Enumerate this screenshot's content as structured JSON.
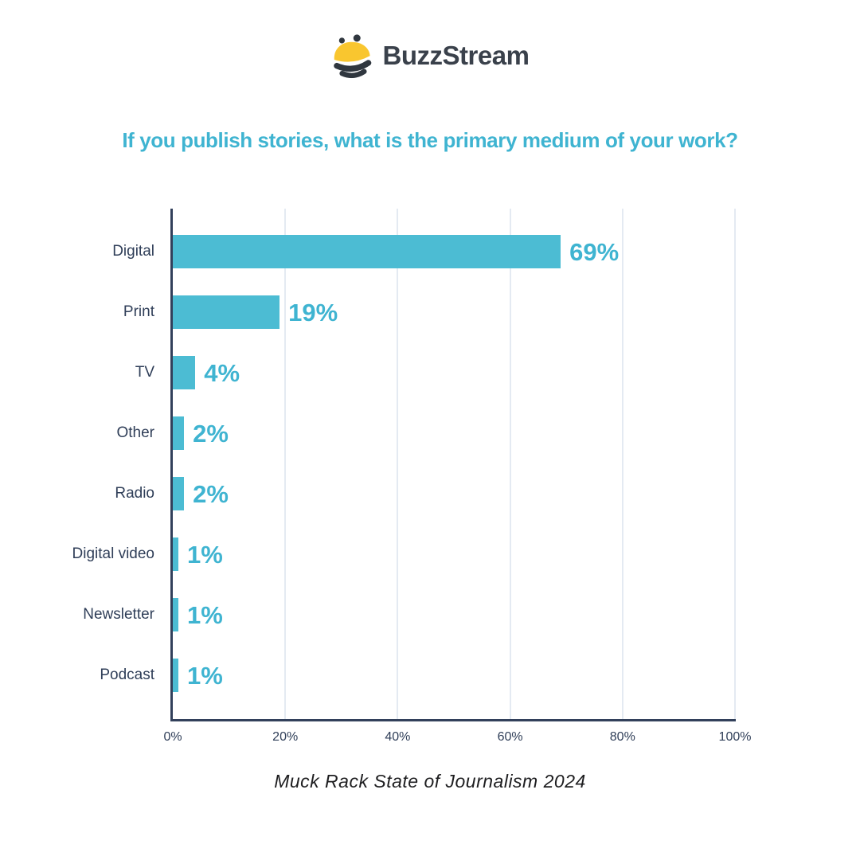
{
  "brand": {
    "name": "BuzzStream",
    "bee_yellow": "#F9C62F",
    "bee_dark": "#30373F",
    "text_color": "#3A414B"
  },
  "title": {
    "text": "If you publish stories, what is the primary medium of your work?"
  },
  "chart_data": {
    "type": "bar",
    "orientation": "horizontal",
    "title": "If you publish stories, what is the primary medium of your work?",
    "categories": [
      "Digital",
      "Print",
      "TV",
      "Other",
      "Radio",
      "Digital video",
      "Newsletter",
      "Podcast"
    ],
    "values": [
      69,
      19,
      4,
      2,
      2,
      1,
      1,
      1
    ],
    "value_labels": [
      "69%",
      "19%",
      "4%",
      "2%",
      "2%",
      "1%",
      "1%",
      "1%"
    ],
    "x_ticks": [
      "0%",
      "20%",
      "40%",
      "60%",
      "80%",
      "100%"
    ],
    "x_tick_values": [
      0,
      20,
      40,
      60,
      80,
      100
    ],
    "xlim": [
      0,
      100
    ],
    "xlabel": "",
    "ylabel": "",
    "grid": "vertical",
    "legend_position": "none",
    "bar_color": "#4CBCD3",
    "value_label_color": "#3FB4D1",
    "title_color": "#3FB4D1",
    "category_label_color": "#2F3E58",
    "axis_color": "#32405B",
    "gridline_color": "#E4EAF2"
  },
  "footer": {
    "source": "Muck Rack State of Journalism 2024",
    "text_color": "#1E1E20"
  }
}
